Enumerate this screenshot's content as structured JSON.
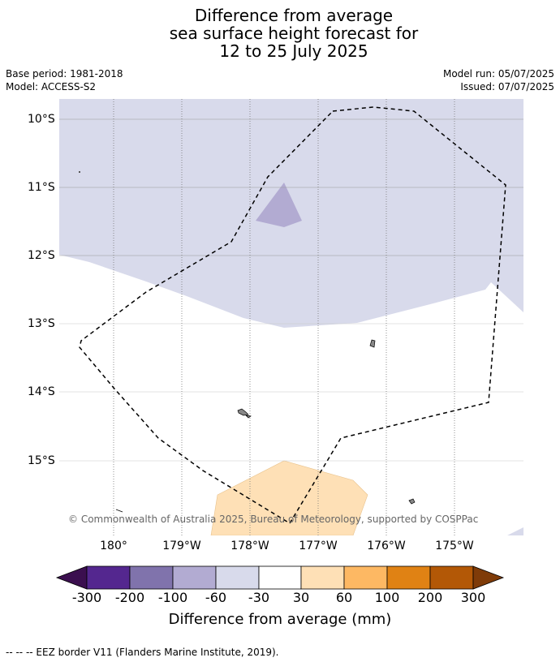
{
  "title": {
    "line1": "Difference from average",
    "line2": "sea surface height forecast for",
    "line3": "12 to 25 July 2025"
  },
  "meta": {
    "base_period": "Base period: 1981-2018",
    "model": "Model: ACCESS-S2",
    "model_run": "Model run: 05/07/2025",
    "issued": "Issued: 07/07/2025"
  },
  "map": {
    "lat_labels": [
      "10°S",
      "11°S",
      "12°S",
      "13°S",
      "14°S",
      "15°S"
    ],
    "lon_labels": [
      "180°",
      "179°W",
      "178°W",
      "177°W",
      "176°W",
      "175°W"
    ],
    "credit": "© Commonwealth of Australia 2025, Bureau of Meteorology, supported by COSPPac"
  },
  "colorbar": {
    "label": "Difference from average (mm)",
    "ticks": [
      "-300",
      "-200",
      "-100",
      "-60",
      "-30",
      "30",
      "60",
      "100",
      "200",
      "300"
    ],
    "colors": {
      "below_min": "#3b0f4f",
      "b1": "#54278f",
      "b2": "#8073ac",
      "b3": "#b2abd2",
      "b4": "#d8daeb",
      "b5": "#ffffff",
      "b6": "#fee0b6",
      "b7": "#fdb863",
      "b8": "#e08214",
      "b9": "#b35806",
      "above_max": "#7f3b08"
    }
  },
  "footer": "--  --  -- EEZ border V11 (Flanders Marine Institute, 2019)."
}
